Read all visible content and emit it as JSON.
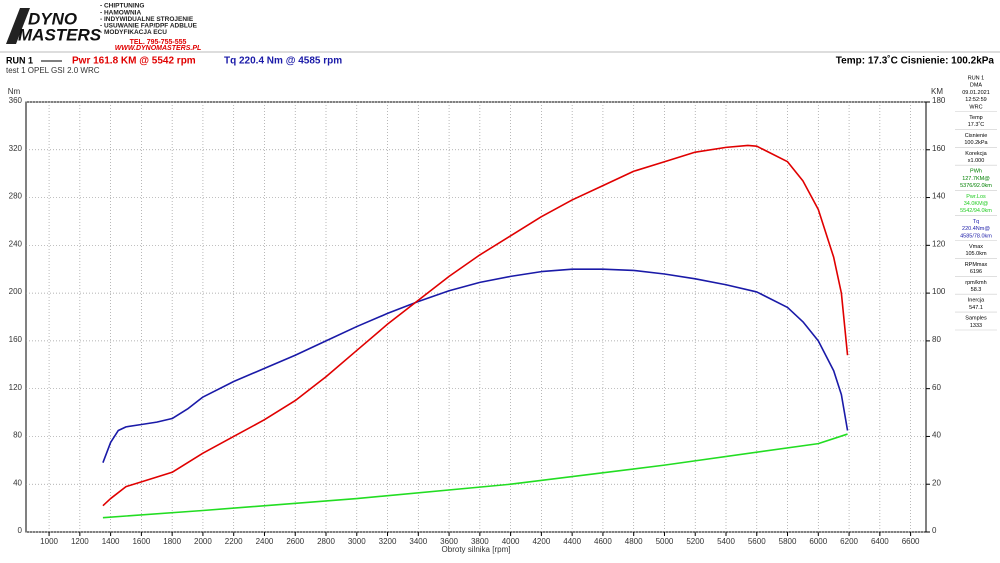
{
  "header": {
    "logo": [
      "DYNO",
      "MASTERS"
    ],
    "services": [
      "- CHIPTUNING",
      "- HAMOWNIA",
      "- INDYWIDUALNE STROJENIE",
      "- USUWANIE FAP/DPF ADBLUE",
      "- MODYFIKACJA ECU"
    ],
    "phone": "TEL. 795-755-555",
    "website": "WWW.DYNOMASTERS.PL"
  },
  "chart_data": {
    "type": "line",
    "run": "RUN 1",
    "subtitle": "test 1 OPEL GSI 2.0 WRC",
    "annotations": [
      {
        "text": "Pwr  161.8 KM @ 5542 rpm",
        "color": "#e00000"
      },
      {
        "text": "Tq 220.4 Nm @ 4585 rpm",
        "color": "#1a1aa8"
      },
      {
        "text": "Temp: 17.3˚C   Cisnienie: 100.2kPa",
        "color": "#000000"
      }
    ],
    "xlabel": "Obroty silnika [rpm]",
    "ylabel": "Nm",
    "y2label": "KM",
    "xlim": [
      850,
      6700
    ],
    "xticks": [
      1000,
      1200,
      1400,
      1600,
      1800,
      2000,
      2200,
      2400,
      2600,
      2800,
      3000,
      3200,
      3400,
      3600,
      3800,
      4000,
      4200,
      4400,
      4600,
      4800,
      5000,
      5200,
      5400,
      5600,
      5800,
      6000,
      6200,
      6400,
      6600
    ],
    "ylim": [
      0,
      360
    ],
    "yticks": [
      0,
      40,
      80,
      120,
      160,
      200,
      240,
      280,
      320,
      360
    ],
    "y2lim": [
      0,
      180
    ],
    "y2ticks": [
      0,
      20,
      40,
      60,
      80,
      100,
      120,
      140,
      160,
      180
    ],
    "grid": true,
    "series": [
      {
        "color": "#1a1aa8",
        "axis": "y",
        "x": [
          1350,
          1400,
          1450,
          1500,
          1600,
          1700,
          1800,
          1900,
          2000,
          2200,
          2400,
          2600,
          2800,
          3000,
          3200,
          3400,
          3600,
          3800,
          4000,
          4200,
          4400,
          4600,
          4800,
          5000,
          5200,
          5400,
          5600,
          5800,
          5900,
          6000,
          6100,
          6150,
          6190
        ],
        "values": [
          58,
          75,
          85,
          88,
          90,
          92,
          95,
          103,
          113,
          126,
          137,
          148,
          160,
          172,
          183,
          193,
          202,
          209,
          214,
          218,
          220,
          220,
          219,
          216,
          212,
          207,
          201,
          188,
          176,
          160,
          135,
          115,
          85
        ]
      },
      {
        "color": "#e00000",
        "axis": "y2",
        "x": [
          1350,
          1400,
          1500,
          1600,
          1800,
          2000,
          2200,
          2400,
          2600,
          2800,
          3000,
          3200,
          3400,
          3600,
          3800,
          4000,
          4200,
          4400,
          4600,
          4800,
          5000,
          5200,
          5400,
          5542,
          5600,
          5800,
          5900,
          6000,
          6100,
          6150,
          6190
        ],
        "values": [
          11,
          14,
          19,
          21,
          25,
          33,
          40,
          47,
          55,
          65,
          76,
          87,
          97,
          107,
          116,
          124,
          132,
          139,
          145,
          151,
          155,
          159,
          161,
          161.8,
          161.5,
          155,
          147,
          135,
          115,
          100,
          74
        ]
      },
      {
        "color": "#22dd22",
        "axis": "y2",
        "x": [
          1350,
          2000,
          3000,
          4000,
          5000,
          6000,
          6190
        ],
        "values": [
          6,
          9,
          14,
          20,
          28,
          37,
          41
        ]
      }
    ]
  },
  "info_panel": [
    {
      "color": "#000000",
      "lines": [
        "RUN 1",
        "DMA",
        "09.01.2021",
        "12:52:59",
        "WRC"
      ]
    },
    {
      "color": "#000000",
      "lines": [
        "Temp",
        "17.3˚C"
      ]
    },
    {
      "color": "#000000",
      "lines": [
        "Cisnienie",
        "100.2kPa"
      ]
    },
    {
      "color": "#000000",
      "lines": [
        "Korekcja",
        "x1.000"
      ]
    },
    {
      "color": "#008000",
      "lines": [
        "PWh",
        "127.7KM@",
        "5376/92.0km"
      ]
    },
    {
      "color": "#22cc22",
      "lines": [
        "Pwr.Los",
        "34.0KM@",
        "5542/94.0km"
      ]
    },
    {
      "color": "#1a1aa8",
      "lines": [
        "Tq",
        "220.4Nm@",
        "4585/78.0km"
      ]
    },
    {
      "color": "#000000",
      "lines": [
        "Vmax",
        "105.0km"
      ]
    },
    {
      "color": "#000000",
      "lines": [
        "RPMmax",
        "6196"
      ]
    },
    {
      "color": "#000000",
      "lines": [
        "rpm/kmh",
        "58.3"
      ]
    },
    {
      "color": "#000000",
      "lines": [
        "Inercja",
        "547.1"
      ]
    },
    {
      "color": "#000000",
      "lines": [
        "Samples",
        "1333"
      ]
    }
  ]
}
